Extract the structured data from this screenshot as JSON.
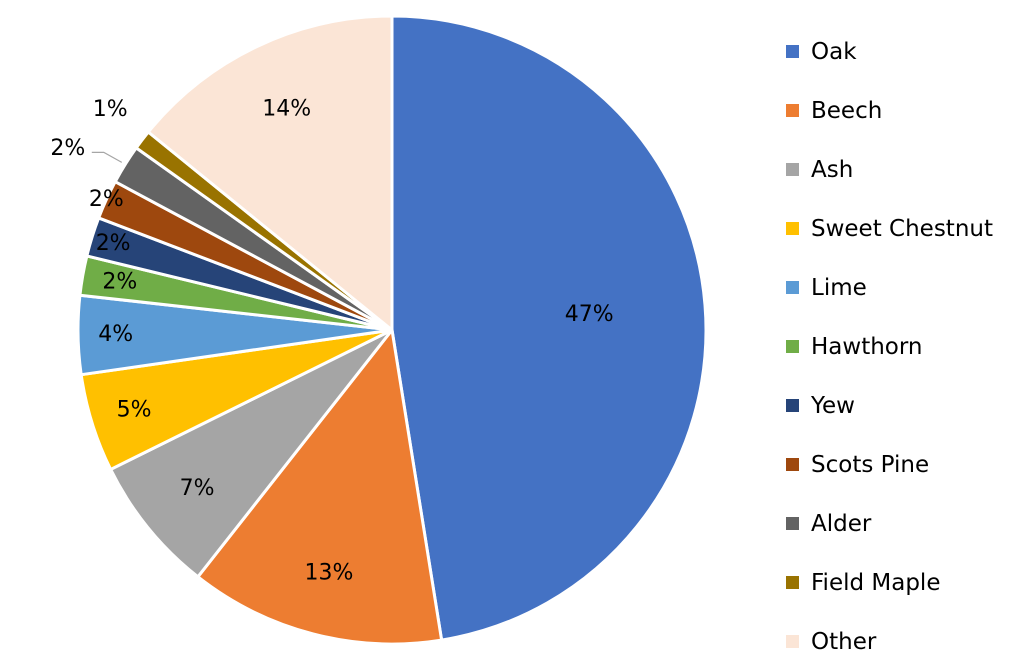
{
  "chart_data": {
    "type": "pie",
    "title": "",
    "legend_position": "right",
    "start": "top, clockwise",
    "slices": [
      {
        "name": "Oak",
        "value": 47,
        "label": "47%",
        "color": "#4472C4"
      },
      {
        "name": "Beech",
        "value": 13,
        "label": "13%",
        "color": "#ED7D31"
      },
      {
        "name": "Ash",
        "value": 7,
        "label": "7%",
        "color": "#A5A5A5"
      },
      {
        "name": "Sweet Chestnut",
        "value": 5,
        "label": "5%",
        "color": "#FFC000"
      },
      {
        "name": "Lime",
        "value": 4,
        "label": "4%",
        "color": "#5B9BD5"
      },
      {
        "name": "Hawthorn",
        "value": 2,
        "label": "2%",
        "color": "#70AD47"
      },
      {
        "name": "Yew",
        "value": 2,
        "label": "2%",
        "color": "#264478"
      },
      {
        "name": "Scots Pine",
        "value": 2,
        "label": "2%",
        "color": "#9E480E"
      },
      {
        "name": "Alder",
        "value": 2,
        "label": "2%",
        "color": "#636363"
      },
      {
        "name": "Field Maple",
        "value": 1,
        "label": "1%",
        "color": "#997300"
      },
      {
        "name": "Other",
        "value": 14,
        "label": "14%",
        "color": "#FBE5D6"
      }
    ]
  }
}
